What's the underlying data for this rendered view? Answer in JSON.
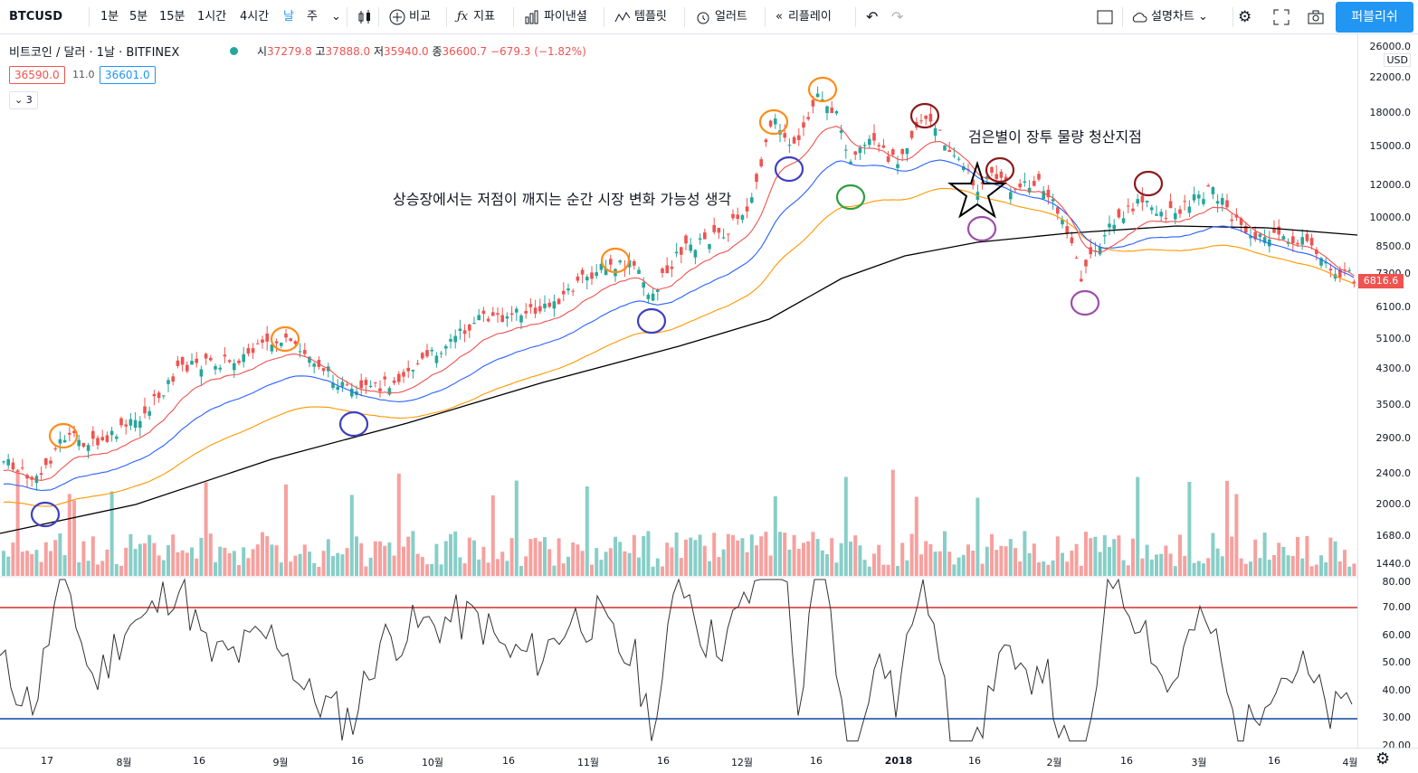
{
  "symbol": "BTCUSD",
  "intervals": [
    "1분",
    "5분",
    "15분",
    "1시간",
    "4시간",
    "날",
    "주"
  ],
  "active_interval": "날",
  "toolbar": {
    "compare": "비교",
    "indicators": "지표",
    "pine": "파이낸셜",
    "templates": "템플릿",
    "alert": "얼러트",
    "replay": "리플레이",
    "cloud_label": "설명차트",
    "publish": "퍼블리쉬"
  },
  "legend": {
    "title": "비트코인 / 달러 · 1날 · BITFINEX",
    "open_label": "시",
    "open": "37279.8",
    "high_label": "고",
    "high": "37888.0",
    "low_label": "저",
    "low": "35940.0",
    "close_label": "종",
    "close": "36600.7",
    "change": "−679.3 (−1.82%)",
    "bid": "36590.0",
    "spread": "11.0",
    "ask": "36601.0",
    "indicator_count": "3"
  },
  "annotations": {
    "bull_note": "상승장에서는 저점이 깨지는 순간 시장 변화 가능성 생각",
    "star_note": "검은별이 장투 물량 청산지점"
  },
  "price_axis": {
    "unit": "USD",
    "ticks": [
      "26000.0",
      "22000.0",
      "18000.0",
      "15000.0",
      "12000.0",
      "10000.0",
      "8500.0",
      "7300.0",
      "6100.0",
      "5100.0",
      "4300.0",
      "3500.0",
      "2900.0",
      "2400.0",
      "2000.0",
      "1680.0",
      "1440.0"
    ],
    "last_price": "6816.6"
  },
  "rsi_axis": {
    "ticks": [
      "80.00",
      "70.00",
      "60.00",
      "50.00",
      "40.00",
      "30.00",
      "20.00"
    ]
  },
  "time_axis": {
    "ticks": [
      "17",
      "8월",
      "16",
      "9월",
      "16",
      "10월",
      "16",
      "11월",
      "16",
      "12월",
      "16",
      "2018",
      "16",
      "2월",
      "16",
      "3월",
      "16",
      "4월"
    ]
  },
  "colors": {
    "up": "#26a69a",
    "down": "#ef5350",
    "ema_fast": "#ef5350",
    "ema_mid": "#2962ff",
    "ema_slow": "#ff9800",
    "ma_long": "#000000",
    "rsi_upper": "#d32f2f",
    "rsi_lower": "#0d47a1",
    "accent": "#2196f3"
  }
}
